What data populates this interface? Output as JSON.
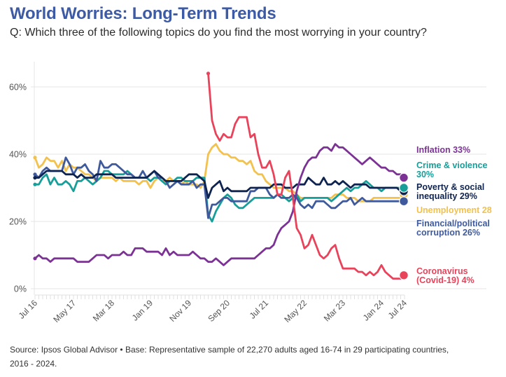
{
  "header": {
    "title": "World Worries: Long-Term Trends",
    "subtitle": "Q: Which three of the following topics do you find the most worrying in your country?"
  },
  "footer": {
    "source_line1": "Source: Ipsos Global Advisor • Base: Representative sample of 22,270 adults aged 16-74 in 29 participating countries,",
    "source_line2": "2016 - 2024."
  },
  "chart_data": {
    "type": "line",
    "title": "World Worries: Long-Term Trends",
    "subtitle": "Q: Which three of the following topics do you find the most worrying in your country?",
    "xlabel": "",
    "ylabel": "",
    "ylim": [
      0,
      66
    ],
    "y_ticks": [
      0,
      20,
      40,
      60
    ],
    "y_tick_labels": [
      "0%",
      "20%",
      "40%",
      "60%"
    ],
    "grid": true,
    "legend_placement": "right (end-of-line labels)",
    "x": [
      "Jul 16",
      "Aug 16",
      "Sep 16",
      "Oct 16",
      "Nov 16",
      "Dec 16",
      "Jan 17",
      "Feb 17",
      "Mar 17",
      "Apr 17",
      "May 17",
      "Jun 17",
      "Jul 17",
      "Aug 17",
      "Sep 17",
      "Oct 17",
      "Nov 17",
      "Dec 17",
      "Jan 18",
      "Feb 18",
      "Mar 18",
      "Apr 18",
      "May 18",
      "Jun 18",
      "Jul 18",
      "Aug 18",
      "Sep 18",
      "Oct 18",
      "Nov 18",
      "Dec 18",
      "Jan 19",
      "Feb 19",
      "Mar 19",
      "Apr 19",
      "May 19",
      "Jun 19",
      "Jul 19",
      "Aug 19",
      "Sep 19",
      "Oct 19",
      "Nov 19",
      "Dec 19",
      "Jan 20",
      "Feb 20",
      "Mar 20",
      "Apr 20",
      "May 20",
      "Jun 20",
      "Jul 20",
      "Aug 20",
      "Sep 20",
      "Oct 20",
      "Nov 20",
      "Dec 20",
      "Jan 21",
      "Feb 21",
      "Mar 21",
      "Apr 21",
      "May 21",
      "Jun 21",
      "Jul 21",
      "Aug 21",
      "Sep 21",
      "Oct 21",
      "Nov 21",
      "Dec 21",
      "Jan 22",
      "Feb 22",
      "Mar 22",
      "Apr 22",
      "May 22",
      "Jun 22",
      "Jul 22",
      "Aug 22",
      "Sep 22",
      "Oct 22",
      "Nov 22",
      "Dec 22",
      "Jan 23",
      "Feb 23",
      "Mar 23",
      "Apr 23",
      "May 23",
      "Jun 23",
      "Jul 23",
      "Aug 23",
      "Sep 23",
      "Oct 23",
      "Nov 23",
      "Dec 23",
      "Jan 24",
      "Feb 24",
      "Mar 24",
      "Apr 24",
      "May 24",
      "Jun 24",
      "Jul 24"
    ],
    "x_ticks": [
      {
        "label": "Jul 16",
        "index": 0
      },
      {
        "label": "May 17",
        "index": 10
      },
      {
        "label": "Mar 18",
        "index": 20
      },
      {
        "label": "Jan 19",
        "index": 30
      },
      {
        "label": "Nov 19",
        "index": 40
      },
      {
        "label": "Sep 20",
        "index": 50
      },
      {
        "label": "Jul 21",
        "index": 60
      },
      {
        "label": "May 22",
        "index": 70
      },
      {
        "label": "Mar 23",
        "index": 80
      },
      {
        "label": "Jan 24",
        "index": 90
      },
      {
        "label": "Jul 24",
        "index": 96
      }
    ],
    "series": [
      {
        "name": "Inflation",
        "legend_lines": [
          "Inflation 33%"
        ],
        "final_value": 33,
        "color": "#7b3294",
        "values": [
          9,
          10,
          9,
          9,
          8,
          9,
          9,
          9,
          9,
          9,
          9,
          8,
          8,
          8,
          8,
          9,
          10,
          10,
          10,
          9,
          10,
          10,
          10,
          11,
          10,
          10,
          12,
          12,
          12,
          11,
          11,
          11,
          11,
          10,
          12,
          10,
          11,
          10,
          10,
          10,
          10,
          11,
          10,
          9,
          9,
          8,
          8,
          9,
          8,
          7,
          8,
          9,
          9,
          9,
          9,
          9,
          9,
          9,
          10,
          11,
          12,
          12,
          13,
          16,
          18,
          19,
          20,
          23,
          29,
          33,
          36,
          38,
          39,
          39,
          41,
          42,
          42,
          41,
          43,
          42,
          42,
          41,
          40,
          39,
          38,
          37,
          38,
          39,
          38,
          37,
          36,
          36,
          35,
          35,
          34,
          34,
          33
        ]
      },
      {
        "name": "Crime & violence",
        "legend_lines": [
          "Crime & violence",
          "30%"
        ],
        "final_value": 30,
        "color": "#179e99",
        "values": [
          31,
          31,
          33,
          34,
          31,
          33,
          31,
          31,
          32,
          31,
          29,
          32,
          32,
          33,
          32,
          31,
          32,
          33,
          35,
          35,
          34,
          34,
          34,
          34,
          35,
          34,
          33,
          33,
          33,
          33,
          32,
          33,
          33,
          32,
          31,
          32,
          32,
          33,
          33,
          32,
          32,
          32,
          33,
          33,
          33,
          22,
          20,
          23,
          25,
          27,
          28,
          27,
          25,
          24,
          24,
          25,
          26,
          27,
          27,
          27,
          27,
          27,
          27,
          28,
          28,
          27,
          26,
          27,
          28,
          26,
          27,
          27,
          27,
          27,
          27,
          27,
          27,
          26,
          27,
          28,
          29,
          30,
          29,
          30,
          30,
          31,
          32,
          31,
          30,
          30,
          29,
          30,
          30,
          30,
          30,
          30,
          30
        ]
      },
      {
        "name": "Poverty & social inequality",
        "legend_lines": [
          "Poverty & social",
          "inequality 29%"
        ],
        "final_value": 29,
        "color": "#0e2350",
        "values": [
          33,
          33,
          34,
          35,
          35,
          35,
          35,
          35,
          34,
          34,
          34,
          33,
          34,
          33,
          33,
          33,
          34,
          34,
          34,
          34,
          34,
          33,
          33,
          33,
          33,
          33,
          33,
          33,
          33,
          33,
          34,
          35,
          34,
          33,
          32,
          32,
          32,
          32,
          32,
          33,
          34,
          34,
          34,
          33,
          32,
          27,
          30,
          31,
          32,
          29,
          30,
          29,
          29,
          29,
          29,
          29,
          30,
          30,
          30,
          30,
          30,
          30,
          31,
          31,
          31,
          30,
          30,
          30,
          31,
          31,
          31,
          33,
          32,
          31,
          31,
          33,
          31,
          31,
          32,
          31,
          32,
          31,
          30,
          31,
          31,
          31,
          31,
          30,
          30,
          30,
          30,
          30,
          30,
          30,
          30,
          29,
          29
        ]
      },
      {
        "name": "Unemployment",
        "legend_lines": [
          "Unemployment 28"
        ],
        "final_value": 28,
        "color": "#f2c14e",
        "values": [
          39,
          36,
          37,
          39,
          38,
          38,
          36,
          38,
          35,
          37,
          36,
          36,
          35,
          34,
          34,
          33,
          32,
          33,
          33,
          33,
          33,
          32,
          33,
          32,
          32,
          32,
          32,
          31,
          32,
          32,
          30,
          32,
          33,
          32,
          32,
          33,
          32,
          32,
          31,
          32,
          31,
          31,
          31,
          30,
          32,
          40,
          42,
          43,
          41,
          40,
          40,
          39,
          39,
          38,
          38,
          37,
          38,
          35,
          34,
          34,
          32,
          31,
          30,
          30,
          30,
          30,
          29,
          29,
          28,
          27,
          27,
          27,
          27,
          27,
          27,
          27,
          27,
          27,
          28,
          28,
          28,
          27,
          27,
          27,
          26,
          26,
          26,
          26,
          27,
          27,
          27,
          27,
          27,
          27,
          27,
          27,
          28
        ]
      },
      {
        "name": "Financial/political corruption",
        "legend_lines": [
          "Financial/political",
          "corruption 26%"
        ],
        "final_value": 26,
        "color": "#3e5a9c",
        "values": [
          34,
          33,
          35,
          36,
          35,
          35,
          35,
          35,
          39,
          37,
          34,
          36,
          36,
          37,
          35,
          34,
          32,
          38,
          36,
          36,
          37,
          37,
          36,
          35,
          34,
          34,
          33,
          33,
          35,
          33,
          34,
          35,
          33,
          33,
          32,
          30,
          31,
          32,
          31,
          31,
          31,
          32,
          30,
          31,
          31,
          21,
          25,
          25,
          26,
          27,
          27,
          26,
          26,
          26,
          26,
          26,
          29,
          29,
          30,
          30,
          30,
          28,
          27,
          28,
          27,
          27,
          27,
          28,
          27,
          25,
          24,
          25,
          24,
          26,
          26,
          26,
          25,
          24,
          24,
          25,
          26,
          26,
          27,
          25,
          26,
          27,
          26,
          26,
          26,
          26,
          26,
          26,
          26,
          26,
          26,
          26,
          26
        ]
      },
      {
        "name": "Coronavirus (Covid-19)",
        "legend_lines": [
          "Coronavirus",
          "(Covid-19) 4%"
        ],
        "final_value": 4,
        "color": "#e8435a",
        "values": [
          null,
          null,
          null,
          null,
          null,
          null,
          null,
          null,
          null,
          null,
          null,
          null,
          null,
          null,
          null,
          null,
          null,
          null,
          null,
          null,
          null,
          null,
          null,
          null,
          null,
          null,
          null,
          null,
          null,
          null,
          null,
          null,
          null,
          null,
          null,
          null,
          null,
          null,
          null,
          null,
          null,
          null,
          null,
          null,
          null,
          64,
          50,
          46,
          44,
          46,
          45,
          45,
          49,
          51,
          51,
          51,
          45,
          46,
          40,
          36,
          36,
          38,
          34,
          28,
          28,
          33,
          35,
          27,
          18,
          16,
          12,
          13,
          16,
          13,
          10,
          9,
          10,
          12,
          13,
          9,
          6,
          6,
          6,
          6,
          5,
          5,
          4,
          5,
          4,
          5,
          7,
          5,
          4,
          3,
          3,
          3,
          4
        ]
      }
    ]
  }
}
